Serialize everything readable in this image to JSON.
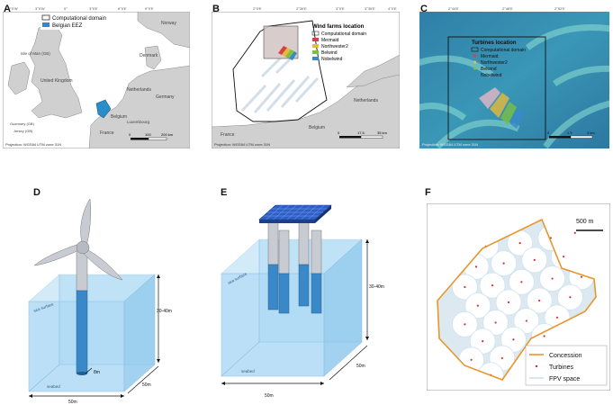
{
  "panels": {
    "A": {
      "label": "A",
      "legend": [
        "Computational domain",
        "Belgian EEZ"
      ],
      "countries": [
        "Norway",
        "United Kingdom",
        "Denmark",
        "Netherlands",
        "Germany",
        "Belgium",
        "France",
        "Luxembourg",
        "Guernsey (GB)",
        "Jersey (GB)",
        "Isle of Man (GB)"
      ],
      "scale": [
        "0",
        "100",
        "200 km"
      ],
      "projection": "Projection: WGS84 UTM zone 31N",
      "top_ticks": [
        "6°0'W",
        "3°0'W",
        "0°",
        "3°0'E",
        "6°0'E",
        "9°0'E"
      ]
    },
    "B": {
      "label": "B",
      "legend_title": "Wind farms location",
      "legend": [
        "Computational domain",
        "Mermaid",
        "Northwester2",
        "Belwind",
        "Nobelwind"
      ],
      "scale": [
        "0",
        "17.5",
        "35 km"
      ],
      "projection": "Projection: WGS84 UTM zone 31N",
      "countries": [
        "Netherlands",
        "Belgium",
        "France"
      ],
      "top_ticks": [
        "2°0'E",
        "2°30'E",
        "3°0'E",
        "3°30'E",
        "4°0'E"
      ]
    },
    "C": {
      "label": "C",
      "legend_title": "Turbines location",
      "legend": [
        "Computational domain",
        "Mermaid",
        "Northwester2",
        "Belwind",
        "Nobelwind"
      ],
      "scale": [
        "0",
        "1.5",
        "3 km"
      ],
      "projection": "Projection: WGS84 UTM zone 31N",
      "top_ticks": [
        "2°44'E",
        "2°48'E",
        "2°52'E"
      ]
    },
    "D": {
      "label": "D",
      "water_surface": "sea surface",
      "seabed": "seabed",
      "depth": "30-40m",
      "width": "50m",
      "depth_side": "50m",
      "pile": "8m"
    },
    "E": {
      "label": "E",
      "water_surface": "sea surface",
      "seabed": "seabed",
      "depth": "30-40m",
      "width": "50m",
      "depth_side": "50m"
    },
    "F": {
      "label": "F",
      "scale_label": "500 m",
      "legend": [
        "Concession",
        "Turbines",
        "FPV space"
      ],
      "colors": {
        "concession": "#e8962a",
        "turbine": "#cc3333",
        "fpv": "#cfe3ef"
      },
      "turbines": [
        [
          0.31,
          0.18
        ],
        [
          0.52,
          0.16
        ],
        [
          0.71,
          0.13
        ],
        [
          0.86,
          0.1
        ],
        [
          0.25,
          0.3
        ],
        [
          0.42,
          0.28
        ],
        [
          0.61,
          0.26
        ],
        [
          0.79,
          0.24
        ],
        [
          0.18,
          0.42
        ],
        [
          0.35,
          0.41
        ],
        [
          0.53,
          0.39
        ],
        [
          0.72,
          0.37
        ],
        [
          0.9,
          0.36
        ],
        [
          0.26,
          0.53
        ],
        [
          0.45,
          0.51
        ],
        [
          0.64,
          0.5
        ],
        [
          0.83,
          0.48
        ],
        [
          0.18,
          0.64
        ],
        [
          0.37,
          0.63
        ],
        [
          0.56,
          0.62
        ],
        [
          0.75,
          0.6
        ],
        [
          0.29,
          0.74
        ],
        [
          0.48,
          0.73
        ],
        [
          0.67,
          0.71
        ],
        [
          0.22,
          0.85
        ],
        [
          0.41,
          0.84
        ],
        [
          0.6,
          0.82
        ],
        [
          0.34,
          0.94
        ]
      ]
    }
  },
  "colors": {
    "land": "#d0d0d0",
    "sea": "#ffffff",
    "eez": "#2a8dc8",
    "water_box": "#a9d8f5",
    "pile": "#3b88c9",
    "pile_top": "#c8ccd2",
    "panel_blue": "#2d5fc9"
  }
}
